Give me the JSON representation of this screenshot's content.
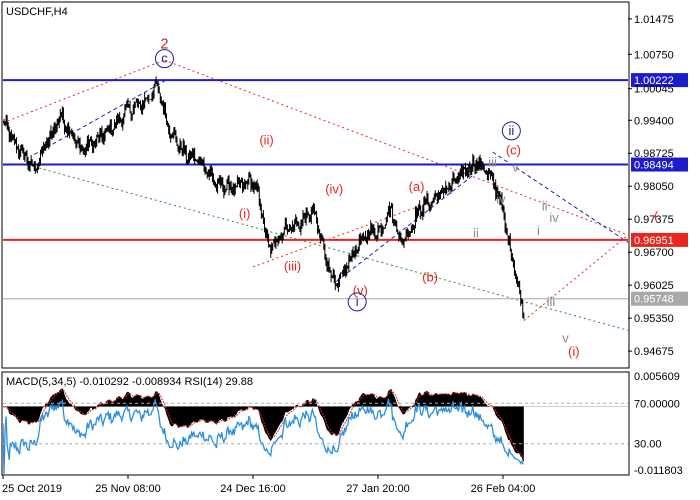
{
  "chart_data": [
    {
      "type": "line",
      "title": "USDCHF,H4",
      "ylim": [
        0.9435,
        1.018
      ],
      "y_ticks": [
        1.01475,
        1.0075,
        1.00045,
        0.994,
        0.98725,
        0.9805,
        0.97375,
        0.967,
        0.96025,
        0.9535,
        0.94675
      ],
      "y_tick_labels": [
        "1.01475",
        "1.00750",
        "1.00045",
        "0.99400",
        "0.98725",
        "0.98050",
        "0.97375",
        "0.96700",
        "0.96025",
        "0.95350",
        "0.94675"
      ],
      "x_tick_labels": [
        "25 Oct 2019",
        "25 Nov 08:00",
        "24 Dec 16:00",
        "27 Jan 20:00",
        "26 Feb 04:00"
      ],
      "bar_count": 600,
      "x_tick_bars": [
        0,
        120,
        240,
        360,
        480
      ],
      "price_anchors": [
        [
          0,
          0.9935
        ],
        [
          12,
          0.989
        ],
        [
          30,
          0.984
        ],
        [
          45,
          0.9905
        ],
        [
          55,
          0.995
        ],
        [
          75,
          0.988
        ],
        [
          90,
          0.99
        ],
        [
          105,
          0.9925
        ],
        [
          120,
          0.996
        ],
        [
          135,
          0.9975
        ],
        [
          148,
          1.001
        ],
        [
          160,
          0.992
        ],
        [
          175,
          0.987
        ],
        [
          190,
          0.9855
        ],
        [
          205,
          0.981
        ],
        [
          222,
          0.98
        ],
        [
          238,
          0.9815
        ],
        [
          245,
          0.979
        ],
        [
          255,
          0.9675
        ],
        [
          270,
          0.9715
        ],
        [
          285,
          0.973
        ],
        [
          298,
          0.9755
        ],
        [
          310,
          0.966
        ],
        [
          320,
          0.9595
        ],
        [
          335,
          0.9665
        ],
        [
          350,
          0.971
        ],
        [
          362,
          0.9715
        ],
        [
          372,
          0.976
        ],
        [
          382,
          0.969
        ],
        [
          392,
          0.972
        ],
        [
          400,
          0.976
        ],
        [
          412,
          0.9775
        ],
        [
          425,
          0.98
        ],
        [
          438,
          0.9825
        ],
        [
          448,
          0.9845
        ],
        [
          455,
          0.9855
        ],
        [
          466,
          0.983
        ],
        [
          476,
          0.979
        ],
        [
          484,
          0.9705
        ],
        [
          492,
          0.963
        ],
        [
          500,
          0.954
        ]
      ],
      "horizontal_levels": [
        {
          "value": 1.00222,
          "label": "1.00222",
          "color": "#1c1ccc"
        },
        {
          "value": 0.98494,
          "label": "0.98494",
          "color": "#1c1ccc"
        },
        {
          "value": 0.96951,
          "label": "0.96951",
          "color": "#e8261e"
        },
        {
          "value": 0.95748,
          "label": "0.95748",
          "color": "#a8a8a8"
        }
      ],
      "trend_lines": [
        {
          "from": [
            0,
            0.9935
          ],
          "to": [
            155,
            1.0063
          ],
          "color": "#e8261e",
          "style": "dotted"
        },
        {
          "from": [
            155,
            1.0063
          ],
          "to": [
            600,
            0.9705
          ],
          "color": "#e8261e",
          "style": "dotted"
        },
        {
          "from": [
            30,
            0.987
          ],
          "to": [
            155,
            1.002
          ],
          "color": "#1c1ccc",
          "style": "dashed"
        },
        {
          "from": [
            30,
            0.9845
          ],
          "to": [
            600,
            0.951
          ],
          "color": "#2e8b2e",
          "style": "dotted"
        },
        {
          "from": [
            320,
            0.961
          ],
          "to": [
            465,
            0.985
          ],
          "color": "#1c1ccc",
          "style": "dashed"
        },
        {
          "from": [
            470,
            0.9875
          ],
          "to": [
            600,
            0.969
          ],
          "color": "#1c1ccc",
          "style": "dashed"
        },
        {
          "from": [
            240,
            0.964
          ],
          "to": [
            420,
            0.978
          ],
          "color": "#e8261e",
          "style": "dotted"
        },
        {
          "from": [
            500,
            0.953
          ],
          "to": [
            600,
            0.9705
          ],
          "color": "#e8261e",
          "style": "dotted"
        }
      ],
      "wave_labels": [
        {
          "text": "2",
          "bar": 155,
          "price": 1.0087,
          "style": "red-big",
          "circled": false
        },
        {
          "text": "c",
          "bar": 155,
          "price": 1.0058,
          "style": "blue",
          "circled": true
        },
        {
          "text": "(ii)",
          "bar": 253,
          "price": 0.989,
          "style": "red",
          "circled": false
        },
        {
          "text": "(i)",
          "bar": 232,
          "price": 0.974,
          "style": "red",
          "circled": false
        },
        {
          "text": "(iii)",
          "bar": 278,
          "price": 0.9632,
          "style": "red",
          "circled": false
        },
        {
          "text": "(iv)",
          "bar": 318,
          "price": 0.979,
          "style": "red",
          "circled": false
        },
        {
          "text": "(v)",
          "bar": 343,
          "price": 0.9582,
          "style": "red",
          "circled": false
        },
        {
          "text": "i",
          "bar": 340,
          "price": 0.956,
          "style": "blue",
          "circled": true
        },
        {
          "text": "(a)",
          "bar": 397,
          "price": 0.9795,
          "style": "red",
          "circled": false
        },
        {
          "text": "(b)",
          "bar": 410,
          "price": 0.961,
          "style": "red",
          "circled": false
        },
        {
          "text": "i",
          "bar": 448,
          "price": 0.982,
          "style": "grey",
          "circled": false
        },
        {
          "text": "ii",
          "bar": 454,
          "price": 0.97,
          "style": "grey",
          "circled": false
        },
        {
          "text": "iii",
          "bar": 470,
          "price": 0.9845,
          "style": "grey",
          "circled": false
        },
        {
          "text": "iv",
          "bar": 478,
          "price": 0.977,
          "style": "grey",
          "circled": false
        },
        {
          "text": "ii",
          "bar": 488,
          "price": 0.991,
          "style": "blue",
          "circled": true
        },
        {
          "text": "(c)",
          "bar": 490,
          "price": 0.987,
          "style": "red",
          "circled": false
        },
        {
          "text": "v",
          "bar": 492,
          "price": 0.9835,
          "style": "grey",
          "circled": false
        },
        {
          "text": "i",
          "bar": 514,
          "price": 0.9705,
          "style": "grey",
          "circled": false
        },
        {
          "text": "ii",
          "bar": 520,
          "price": 0.9755,
          "style": "grey",
          "circled": false
        },
        {
          "text": "iv",
          "bar": 529,
          "price": 0.9732,
          "style": "grey",
          "circled": false
        },
        {
          "text": "iii",
          "bar": 526,
          "price": 0.956,
          "style": "grey",
          "circled": false
        },
        {
          "text": "v",
          "bar": 540,
          "price": 0.9485,
          "style": "grey",
          "circled": false
        },
        {
          "text": "(i)",
          "bar": 548,
          "price": 0.9458,
          "style": "red",
          "circled": false
        },
        {
          "text": "(",
          "bar": 627,
          "price": 0.9735,
          "style": "red",
          "circled": false
        }
      ]
    },
    {
      "type": "bar",
      "title": "MACD(5,34,5) -0.010292 -0.008934 RSI(14) 29.88",
      "ylim": [
        -0.0125,
        0.0062
      ],
      "y_ticks": [
        0.005609,
        -0.011803
      ],
      "y_tick_labels": [
        "0.005609",
        "-0.011803"
      ],
      "rsi_levels": [
        70,
        30
      ],
      "rsi_tick_labels": [
        "70.00000",
        "30.00"
      ],
      "macd_last": -0.010292,
      "signal_last": -0.008934,
      "rsi_last": 29.88,
      "bar_color": "#000000",
      "signal_color": "#e8261e",
      "rsi_color": "#2a8fe0"
    }
  ]
}
